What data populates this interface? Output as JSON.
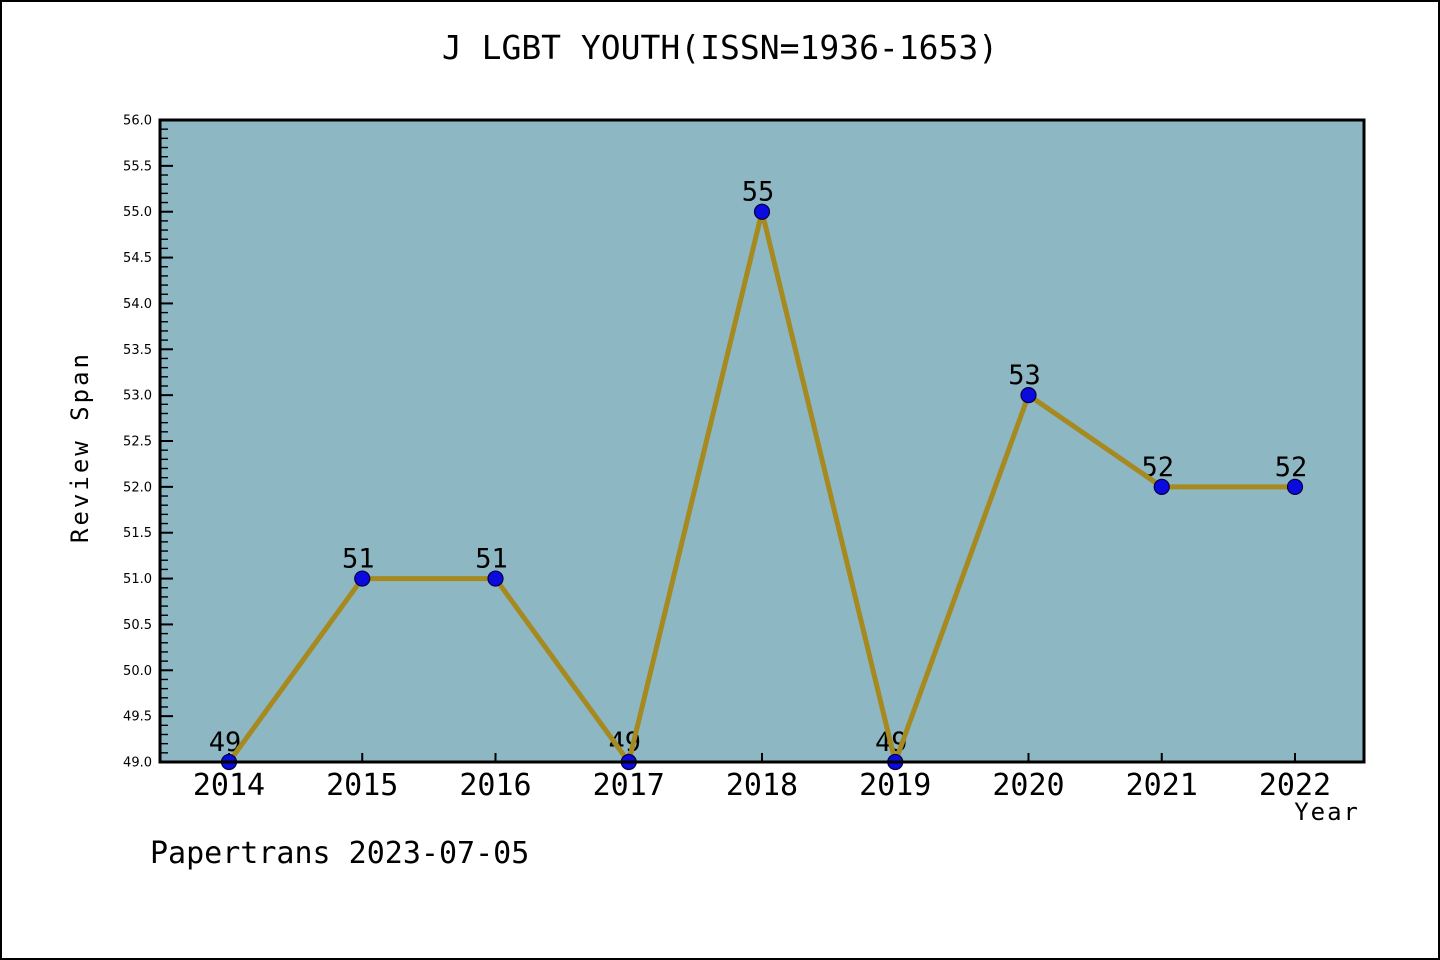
{
  "page": {
    "footer": "Papertrans 2023-07-05"
  },
  "chart_data": {
    "type": "line",
    "title": "J LGBT YOUTH(ISSN=1936-1653)",
    "xlabel": "Year",
    "ylabel": "Review Span",
    "categories": [
      "2014",
      "2015",
      "2016",
      "2017",
      "2018",
      "2019",
      "2020",
      "2021",
      "2022"
    ],
    "series": [
      {
        "name": "Review Span",
        "values": [
          49,
          51,
          51,
          49,
          55,
          49,
          53,
          52,
          52
        ]
      }
    ],
    "point_labels": [
      "49",
      "51",
      "51",
      "49",
      "55",
      "49",
      "53",
      "52",
      "52"
    ],
    "ylim": [
      49.0,
      56.0
    ],
    "ytick_step": 0.5,
    "yminor_step": 0.1,
    "ytick_decimals": 1,
    "grid": false,
    "legend_position": "none",
    "colors": {
      "plot_background": "#8db7c3",
      "line": "#a6891f",
      "marker_fill": "#0b0be0",
      "marker_edge": "#000040",
      "frame": "#000000",
      "text": "#000000"
    }
  }
}
